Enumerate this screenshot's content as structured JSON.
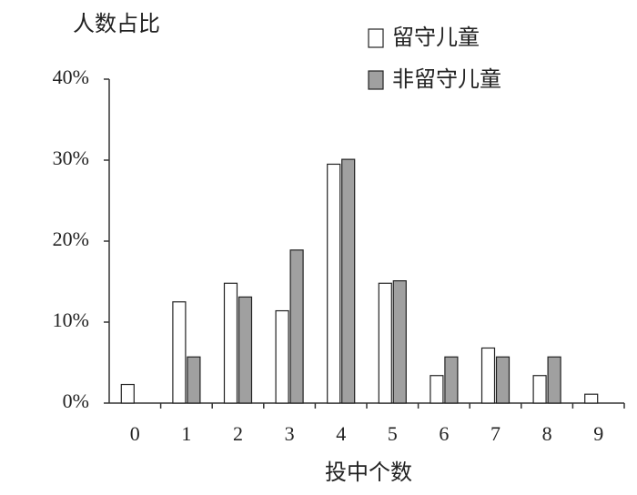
{
  "chart_data": {
    "type": "bar",
    "ylabel": "人数占比",
    "xlabel": "投中个数",
    "categories": [
      "0",
      "1",
      "2",
      "3",
      "4",
      "5",
      "6",
      "7",
      "8",
      "9"
    ],
    "series": [
      {
        "name": "留守儿童",
        "color": "#ffffff",
        "values": [
          2.3,
          12.5,
          14.8,
          11.4,
          29.5,
          14.8,
          3.4,
          6.8,
          3.4,
          1.1
        ]
      },
      {
        "name": "非留守儿童",
        "color": "#a0a0a0",
        "values": [
          0,
          5.7,
          13.1,
          18.9,
          30.1,
          15.1,
          5.7,
          5.7,
          5.7,
          0
        ]
      }
    ],
    "ylim": [
      0,
      40
    ],
    "yticks": [
      {
        "value": 0,
        "label": "0%"
      },
      {
        "value": 10,
        "label": "10%"
      },
      {
        "value": 20,
        "label": "20%"
      },
      {
        "value": 30,
        "label": "30%"
      },
      {
        "value": 40,
        "label": "40%"
      }
    ],
    "legend": "upper right",
    "grid": false
  }
}
